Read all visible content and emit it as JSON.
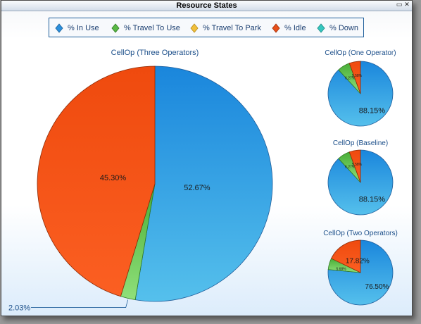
{
  "window": {
    "title": "Resource States",
    "buttons": {
      "restore": "▭",
      "close": "✕"
    }
  },
  "legend": [
    {
      "label": "% In Use",
      "color": "#2b8fdc"
    },
    {
      "label": "% Travel To Use",
      "color": "#59b845"
    },
    {
      "label": "% Travel To Park",
      "color": "#f1bf3b"
    },
    {
      "label": "% Idle",
      "color": "#e8501a"
    },
    {
      "label": "% Down",
      "color": "#36c7bf"
    }
  ],
  "chart_data": [
    {
      "type": "pie",
      "title": "CellOp (Three Operators)",
      "series": [
        {
          "name": "% In Use",
          "value": 52.67,
          "label": "52.67%"
        },
        {
          "name": "% Travel To Use",
          "value": 2.03,
          "label": "2.03%"
        },
        {
          "name": "% Idle",
          "value": 45.3,
          "label": "45.30%"
        }
      ]
    },
    {
      "type": "pie",
      "title": "CellOp (One Operator)",
      "series": [
        {
          "name": "% In Use",
          "value": 88.15,
          "label": "88.15%"
        },
        {
          "name": "% Travel To Use",
          "value": 6.27,
          "label": "6.27%"
        },
        {
          "name": "% Idle",
          "value": 5.58,
          "label": "5.58%"
        }
      ]
    },
    {
      "type": "pie",
      "title": "CellOp (Baseline)",
      "series": [
        {
          "name": "% In Use",
          "value": 88.15,
          "label": "88.15%"
        },
        {
          "name": "% Travel To Use",
          "value": 6.27,
          "label": "6.27%"
        },
        {
          "name": "% Idle",
          "value": 5.58,
          "label": "5.58%"
        }
      ]
    },
    {
      "type": "pie",
      "title": "CellOp (Two Operators)",
      "series": [
        {
          "name": "% In Use",
          "value": 76.5,
          "label": "76.50%"
        },
        {
          "name": "% Travel To Use",
          "value": 5.68,
          "label": "5.68%"
        },
        {
          "name": "% Idle",
          "value": 17.82,
          "label": "17.82%"
        }
      ]
    }
  ]
}
